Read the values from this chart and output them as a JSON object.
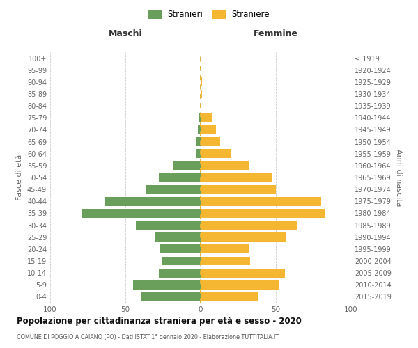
{
  "age_groups": [
    "0-4",
    "5-9",
    "10-14",
    "15-19",
    "20-24",
    "25-29",
    "30-34",
    "35-39",
    "40-44",
    "45-49",
    "50-54",
    "55-59",
    "60-64",
    "65-69",
    "70-74",
    "75-79",
    "80-84",
    "85-89",
    "90-94",
    "95-99",
    "100+"
  ],
  "birth_years": [
    "2015-2019",
    "2010-2014",
    "2005-2009",
    "2000-2004",
    "1995-1999",
    "1990-1994",
    "1985-1989",
    "1980-1984",
    "1975-1979",
    "1970-1974",
    "1965-1969",
    "1960-1964",
    "1955-1959",
    "1950-1954",
    "1945-1949",
    "1940-1944",
    "1935-1939",
    "1930-1934",
    "1925-1929",
    "1920-1924",
    "≤ 1919"
  ],
  "maschi": [
    40,
    45,
    28,
    26,
    27,
    30,
    43,
    79,
    64,
    36,
    28,
    18,
    3,
    3,
    2,
    1,
    0,
    0,
    0,
    0,
    0
  ],
  "femmine": [
    38,
    52,
    56,
    33,
    32,
    57,
    64,
    83,
    80,
    50,
    47,
    32,
    20,
    13,
    10,
    8,
    0,
    1,
    1,
    0,
    0
  ],
  "color_maschi": "#6a9e5b",
  "color_femmine": "#f5b731",
  "label_maschi": "Maschi",
  "label_femmine": "Femmine",
  "ylabel_left": "Fasce di età",
  "ylabel_right": "Anni di nascita",
  "legend_maschi": "Stranieri",
  "legend_femmine": "Straniere",
  "title": "Popolazione per cittadinanza straniera per età e sesso - 2020",
  "subtitle": "COMUNE DI POGGIO A CAIANO (PO) - Dati ISTAT 1° gennaio 2020 - Elaborazione TUTTITALIA.IT",
  "xlim": 100,
  "bg_color": "#ffffff",
  "grid_color": "#cccccc",
  "center_line_color1": "#6a9e5b",
  "center_line_color2": "#f5b731"
}
